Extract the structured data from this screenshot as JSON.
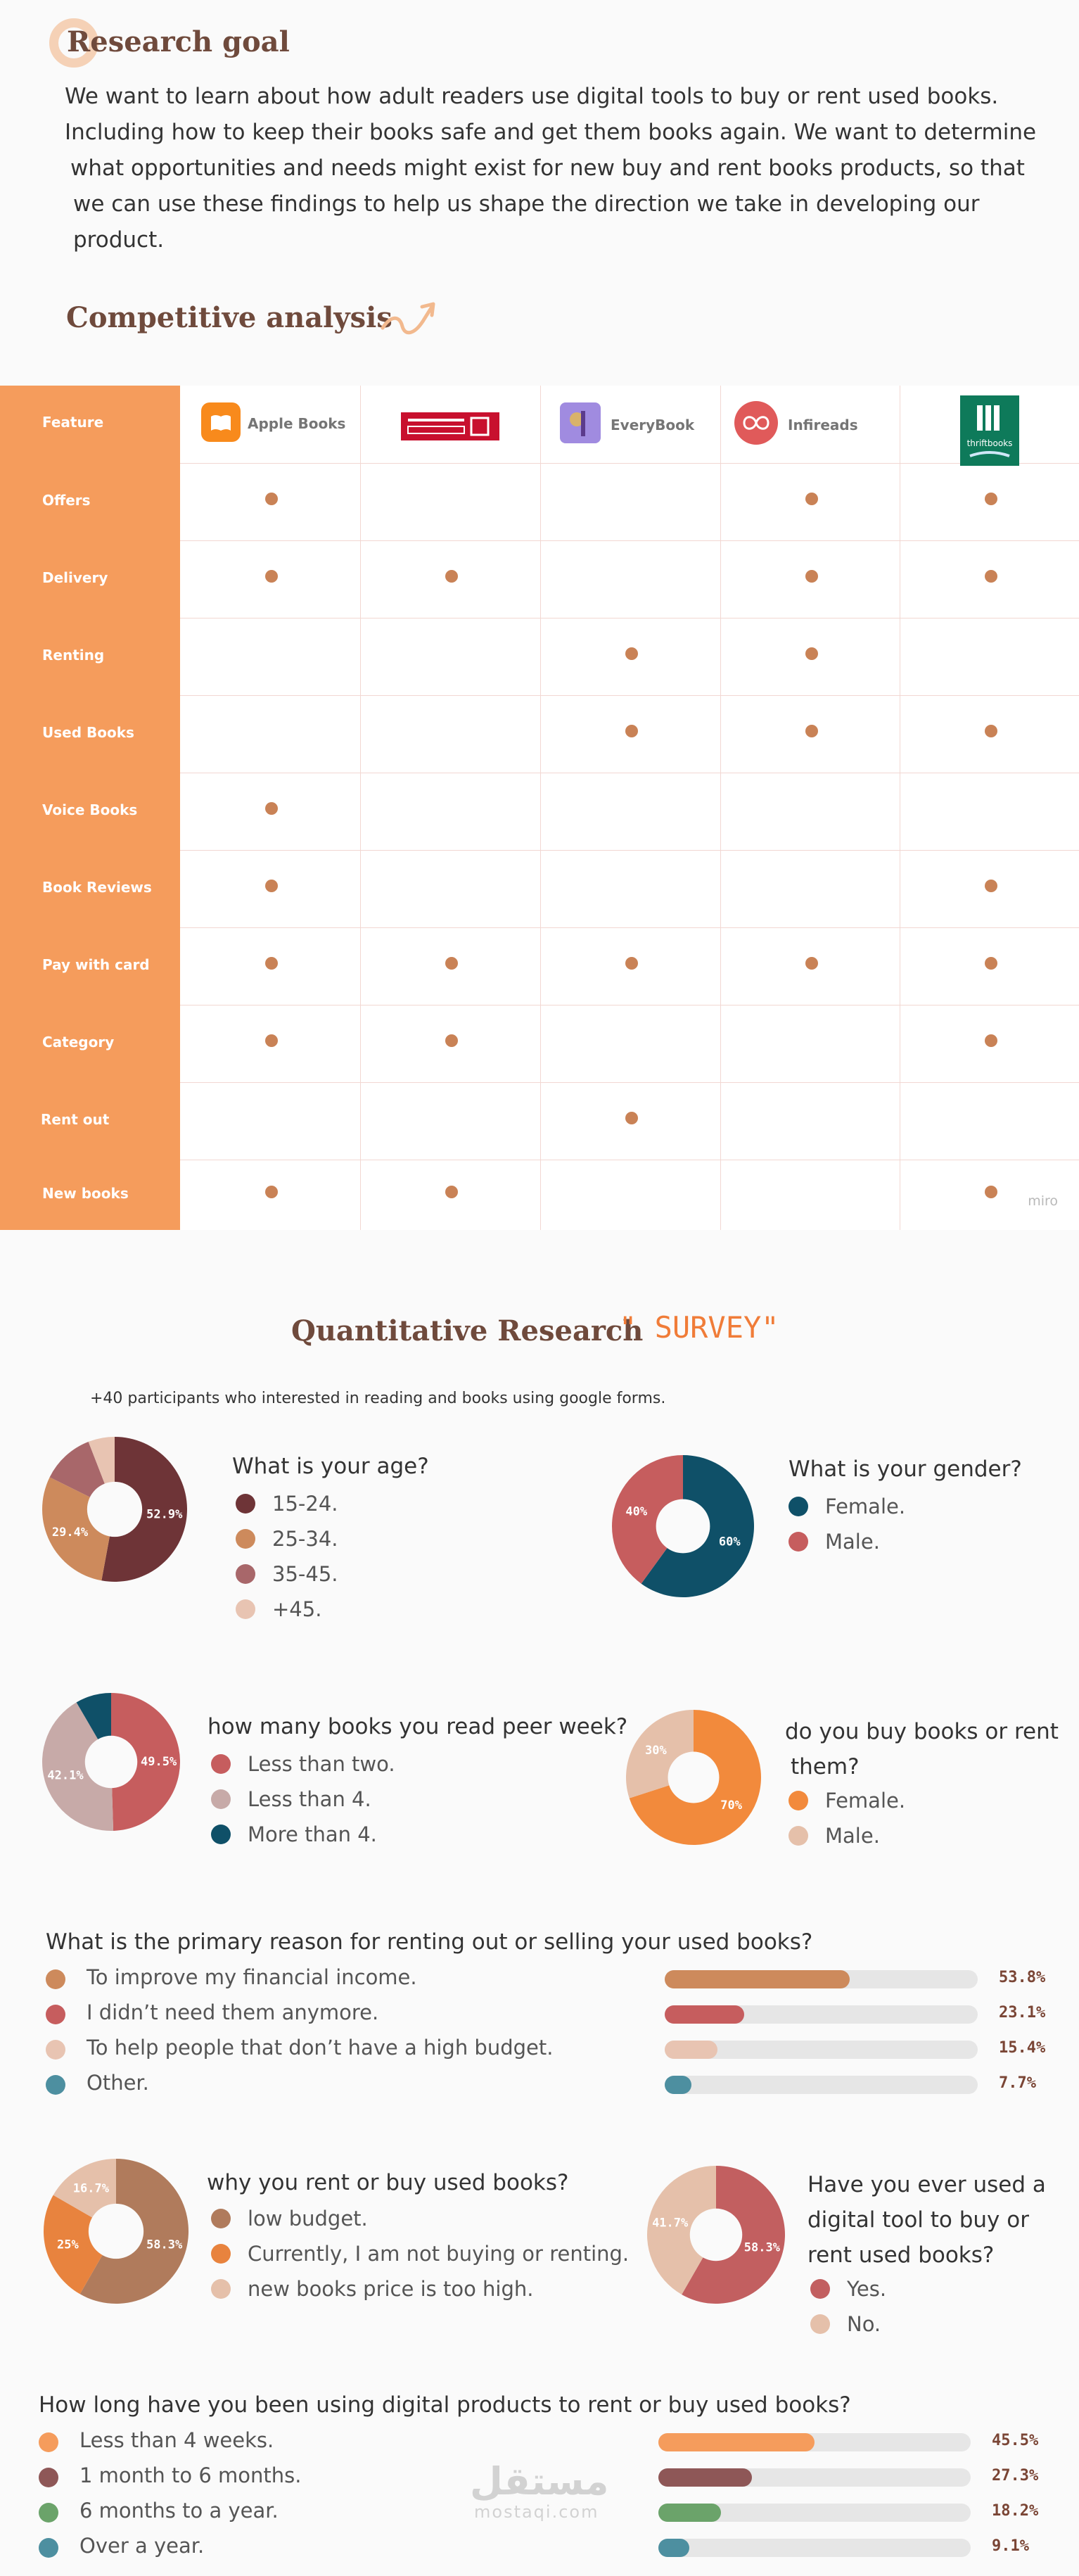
{
  "research_goal": {
    "title": "Research goal",
    "lines": [
      "We want to learn about how adult readers use digital tools to buy or rent used books.",
      "Including how to keep their books safe and get them books again. We want to determine",
      "what opportunities and needs might exist for new buy and rent books products, so that",
      "we can use these findings to help us shape the direction we take in developing our product."
    ]
  },
  "competitive": {
    "title": "Competitive analysis",
    "arrow_icon": "curly-arrow-icon",
    "feature_header": "Feature",
    "competitors": [
      {
        "name": "Apple Books",
        "icon": "apple-books-logo-icon",
        "color": "#f88a1c"
      },
      {
        "name": "",
        "icon": "jarir-logo-icon",
        "color": "#c8102e"
      },
      {
        "name": "EveryBook",
        "icon": "everybook-logo-icon",
        "color": "#a08be0"
      },
      {
        "name": "Infireads",
        "icon": "infireads-logo-icon",
        "color": "#e05a5a"
      },
      {
        "name": "thriftbooks",
        "icon": "thriftbooks-logo-icon",
        "color": "#0e7a5a"
      }
    ],
    "rows": [
      {
        "feature": "Offers",
        "marks": [
          1,
          0,
          0,
          1,
          1
        ]
      },
      {
        "feature": "Delivery",
        "marks": [
          1,
          1,
          0,
          1,
          1
        ]
      },
      {
        "feature": "Renting",
        "marks": [
          0,
          0,
          1,
          1,
          0
        ]
      },
      {
        "feature": "Used Books",
        "marks": [
          0,
          0,
          1,
          1,
          1
        ]
      },
      {
        "feature": "Voice Books",
        "marks": [
          1,
          0,
          0,
          0,
          0
        ]
      },
      {
        "feature": "Book Reviews",
        "marks": [
          1,
          0,
          0,
          0,
          1
        ]
      },
      {
        "feature": "Pay with card",
        "marks": [
          1,
          1,
          1,
          1,
          1
        ]
      },
      {
        "feature": "Category",
        "marks": [
          1,
          1,
          0,
          0,
          1
        ]
      },
      {
        "feature": "Rent out",
        "marks": [
          0,
          0,
          1,
          0,
          0
        ]
      },
      {
        "feature": "New books",
        "marks": [
          1,
          1,
          0,
          0,
          1
        ]
      }
    ],
    "watermark": "miro"
  },
  "survey": {
    "title": "Quantitative Research",
    "tag": "\" SURVEY\"",
    "participants": "+40 participants who interested in reading and books using google forms.",
    "age": {
      "question": "What is your age?",
      "legend": [
        "15-24.",
        "25-34.",
        "35-45.",
        "+45."
      ],
      "colors": [
        "#6e3437",
        "#cd8a5c",
        "#a8676a",
        "#e8c4b2"
      ],
      "values": [
        52.9,
        29.4,
        11.8,
        5.9
      ],
      "labels": [
        "52.9%",
        "29.4%",
        "",
        ""
      ]
    },
    "gender": {
      "question": "What is your gender?",
      "legend": [
        "Female.",
        "Male."
      ],
      "colors": [
        "#0f5068",
        "#c65d5e"
      ],
      "values": [
        60,
        40
      ],
      "labels": [
        "60%",
        "40%"
      ]
    },
    "books_week": {
      "question": "how many books you read peer week?",
      "legend": [
        "Less than two.",
        "Less than 4.",
        "More than 4."
      ],
      "colors": [
        "#c65d5e",
        "#c7aaa8",
        "#0f5068"
      ],
      "values": [
        49.5,
        42.1,
        8.4
      ],
      "labels": [
        "49.5%",
        "42.1%",
        ""
      ]
    },
    "buy_rent": {
      "question_lines": [
        "do you buy books or rent",
        "them?"
      ],
      "legend": [
        "Female.",
        "Male."
      ],
      "colors": [
        "#f28a3c",
        "#e5c0aa"
      ],
      "values": [
        70,
        30
      ],
      "labels": [
        "70%",
        "30%"
      ]
    },
    "reason": {
      "question": "What is the primary reason for renting out or selling your used books?",
      "items": [
        {
          "label": "To improve my financial income.",
          "pct": 53.8,
          "pct_label": "53.8%",
          "color": "#cd8a5c"
        },
        {
          "label": " I didn’t need them anymore.",
          "pct": 23.1,
          "pct_label": "23.1%",
          "color": "#c65d5e"
        },
        {
          "label": "To help people that don’t have a high budget.",
          "pct": 15.4,
          "pct_label": "15.4%",
          "color": "#e8c4b2"
        },
        {
          "label": "Other.",
          "pct": 7.7,
          "pct_label": "7.7%",
          "color": "#4d8fa0"
        }
      ]
    },
    "why": {
      "question": "why you rent or buy used books?",
      "legend": [
        "low budget.",
        "Currently, I am not buying or renting.",
        "new books price is too high."
      ],
      "colors": [
        "#b07b5c",
        "#e8833e",
        "#e5c0aa"
      ],
      "values": [
        58.3,
        25,
        16.7
      ],
      "labels": [
        "58.3%",
        "25%",
        "16.7%"
      ]
    },
    "used_tool": {
      "question_lines": [
        "Have you ever used a",
        "digital tool to buy or",
        "rent used books?"
      ],
      "legend": [
        "Yes.",
        "No."
      ],
      "colors": [
        "#c25f60",
        "#e5c0aa"
      ],
      "values": [
        58.3,
        41.7
      ],
      "labels": [
        "58.3%",
        "41.7%"
      ]
    },
    "duration": {
      "question": "How long have you been using digital products to rent or buy used books?",
      "items": [
        {
          "label": "Less than 4 weeks.",
          "pct": 45.5,
          "pct_label": "45.5%",
          "color": "#f59c5c"
        },
        {
          "label": "1 month to 6 months.",
          "pct": 27.3,
          "pct_label": "27.3%",
          "color": "#8e5757"
        },
        {
          "label": "6 months to a year.",
          "pct": 18.2,
          "pct_label": "18.2%",
          "color": "#6ba36a"
        },
        {
          "label": "Over a year.",
          "pct": 9.1,
          "pct_label": "9.1%",
          "color": "#4d8fa0"
        }
      ]
    }
  },
  "watermark": {
    "arabic": "مستقل",
    "latin": "mostaqi.com"
  }
}
